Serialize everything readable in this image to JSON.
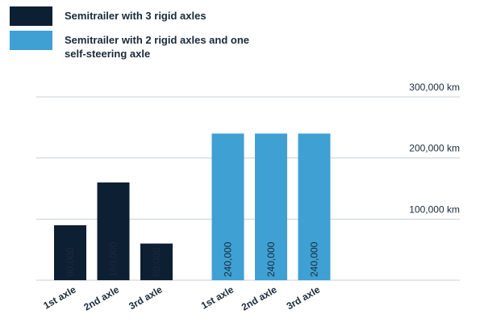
{
  "chart_data": {
    "type": "bar",
    "categories": [
      "1st axle",
      "2nd axle",
      "3rd axle",
      "1st axle",
      "2nd axle",
      "3rd axle"
    ],
    "series": [
      {
        "name": "Semitrailer with 3 rigid axles",
        "color": "#0d1f33",
        "values": [
          90000,
          160000,
          60000,
          null,
          null,
          null
        ],
        "value_labels": [
          "90,000",
          "160,000",
          "60,000",
          null,
          null,
          null
        ]
      },
      {
        "name": "Semitrailer with 2 rigid axles and one self-steering axle",
        "color": "#3fa0d4",
        "values": [
          null,
          null,
          null,
          240000,
          240000,
          240000
        ],
        "value_labels": [
          null,
          null,
          null,
          "240,000",
          "240,000",
          "240,000"
        ]
      }
    ],
    "ylim": [
      0,
      300000
    ],
    "yticks": [
      {
        "value": 100000,
        "label": "100,000 km"
      },
      {
        "value": 200000,
        "label": "200,000 km"
      },
      {
        "value": 300000,
        "label": "300,000 km"
      }
    ],
    "grid": true
  }
}
